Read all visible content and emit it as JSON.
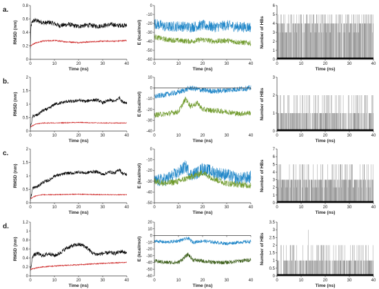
{
  "panel_labels": [
    "a.",
    "b.",
    "c.",
    "d."
  ],
  "colors": {
    "rmsd_black": "#000000",
    "rmsd_red": "#cc1f1f",
    "energy_blue": "#1f86c8",
    "energy_green": "#6f9a2b",
    "energy_green_dark": "#3d5f1b",
    "hbond_gray": "#888888",
    "axis": "#333333"
  },
  "chart_data": [
    {
      "row": 0,
      "col": 0,
      "type": "line",
      "title": "",
      "xlabel": "Time (ns)",
      "ylabel": "RMSD (nm)",
      "xlim": [
        0,
        40
      ],
      "ylim": [
        0,
        0.8
      ],
      "xticks": [
        0,
        10,
        20,
        30,
        40
      ],
      "yticks": [
        0,
        0.2,
        0.4,
        0.6,
        0.8
      ],
      "series": [
        {
          "color": "#000000",
          "x": [
            0,
            0.3,
            1,
            2,
            4,
            6,
            8,
            10,
            12,
            14,
            16,
            18,
            20,
            22,
            24,
            26,
            28,
            30,
            32,
            34,
            36,
            38,
            40
          ],
          "y": [
            0.15,
            0.5,
            0.57,
            0.58,
            0.56,
            0.54,
            0.55,
            0.53,
            0.5,
            0.51,
            0.52,
            0.5,
            0.49,
            0.5,
            0.51,
            0.5,
            0.49,
            0.5,
            0.51,
            0.52,
            0.5,
            0.51,
            0.5
          ],
          "noise": 0.035
        },
        {
          "color": "#cc1f1f",
          "x": [
            0,
            2,
            5,
            10,
            15,
            20,
            25,
            30,
            35,
            40
          ],
          "y": [
            0.2,
            0.24,
            0.27,
            0.28,
            0.26,
            0.25,
            0.26,
            0.27,
            0.27,
            0.28
          ],
          "noise": 0.01
        }
      ]
    },
    {
      "row": 0,
      "col": 1,
      "type": "line",
      "title": "",
      "xlabel": "Time (ns)",
      "ylabel": "E (kcal/mol)",
      "xlim": [
        0,
        40
      ],
      "ylim": [
        -60,
        0
      ],
      "xticks": [
        0,
        10,
        20,
        30,
        40
      ],
      "yticks": [
        0,
        -10,
        -20,
        -30,
        -40,
        -50,
        -60
      ],
      "series": [
        {
          "color": "#1f86c8",
          "x": [
            0,
            5,
            10,
            15,
            20,
            25,
            30,
            35,
            40
          ],
          "y": [
            -20,
            -24,
            -23,
            -24,
            -22,
            -24,
            -22,
            -24,
            -24
          ],
          "noise": 6
        },
        {
          "color": "#6f9a2b",
          "x": [
            0,
            5,
            10,
            15,
            20,
            25,
            30,
            35,
            40
          ],
          "y": [
            -35,
            -38,
            -39,
            -40,
            -38,
            -40,
            -39,
            -41,
            -42
          ],
          "noise": 3
        }
      ]
    },
    {
      "row": 0,
      "col": 2,
      "type": "bar",
      "title": "",
      "xlabel": "Time (ns)",
      "ylabel": "Number of HBs",
      "xlim": [
        0,
        40
      ],
      "ylim": [
        0,
        6
      ],
      "xticks": [
        0,
        10,
        20,
        30,
        40
      ],
      "yticks": [
        0,
        1,
        2,
        3,
        4,
        5,
        6
      ],
      "base_level": 4,
      "max_level": 5
    },
    {
      "row": 1,
      "col": 0,
      "type": "line",
      "title": "",
      "xlabel": "Time (ns)",
      "ylabel": "RMSD (nm)",
      "xlim": [
        0,
        40
      ],
      "ylim": [
        0,
        2
      ],
      "xticks": [
        0,
        10,
        20,
        30,
        40
      ],
      "yticks": [
        0,
        0.5,
        1,
        1.5,
        2
      ],
      "series": [
        {
          "color": "#000000",
          "x": [
            0,
            1,
            3,
            5,
            8,
            10,
            13,
            15,
            18,
            20,
            23,
            25,
            28,
            30,
            33,
            35,
            37,
            38,
            40
          ],
          "y": [
            0.1,
            0.55,
            0.6,
            0.75,
            0.85,
            1.0,
            1.05,
            1.1,
            1.1,
            1.15,
            1.1,
            1.15,
            1.15,
            1.05,
            1.15,
            1.1,
            1.25,
            1.1,
            1.05
          ],
          "noise": 0.06
        },
        {
          "color": "#cc1f1f",
          "x": [
            0,
            2,
            5,
            10,
            20,
            30,
            40
          ],
          "y": [
            0.15,
            0.25,
            0.3,
            0.3,
            0.32,
            0.3,
            0.3
          ],
          "noise": 0.015
        }
      ]
    },
    {
      "row": 1,
      "col": 1,
      "type": "line",
      "title": "",
      "xlabel": "Time (ns)",
      "ylabel": "E (kcal/mol)",
      "xlim": [
        0,
        40
      ],
      "ylim": [
        -40,
        10
      ],
      "xticks": [
        0,
        10,
        20,
        30,
        40
      ],
      "yticks": [
        10,
        0,
        -10,
        -20,
        -30,
        -40
      ],
      "series": [
        {
          "color": "#1f86c8",
          "x": [
            0,
            5,
            10,
            15,
            20,
            25,
            30,
            35,
            40
          ],
          "y": [
            -8,
            -6,
            -4,
            0,
            -2,
            -3,
            -2,
            -1,
            0
          ],
          "noise": 2.5
        },
        {
          "color": "#6f9a2b",
          "x": [
            0,
            5,
            10,
            13,
            15,
            18,
            20,
            25,
            30,
            35,
            40
          ],
          "y": [
            -25,
            -24,
            -22,
            -10,
            -17,
            -14,
            -20,
            -21,
            -22,
            -24,
            -23
          ],
          "noise": 2.5
        }
      ]
    },
    {
      "row": 1,
      "col": 2,
      "type": "bar",
      "title": "",
      "xlabel": "Time (ns)",
      "ylabel": "Number of HBs",
      "xlim": [
        0,
        40
      ],
      "ylim": [
        0,
        3
      ],
      "xticks": [
        0,
        10,
        20,
        30,
        40
      ],
      "yticks": [
        0,
        1,
        2,
        3
      ],
      "base_level": 1,
      "max_level": 2
    },
    {
      "row": 2,
      "col": 0,
      "type": "line",
      "title": "",
      "xlabel": "Time (ns)",
      "ylabel": "RMSD (nm)",
      "xlim": [
        0,
        40
      ],
      "ylim": [
        0,
        2
      ],
      "xticks": [
        0,
        10,
        20,
        30,
        40
      ],
      "yticks": [
        0,
        0.5,
        1,
        1.5,
        2
      ],
      "series": [
        {
          "color": "#000000",
          "x": [
            0,
            1,
            3,
            5,
            8,
            10,
            13,
            15,
            18,
            20,
            23,
            25,
            28,
            30,
            33,
            35,
            37,
            38,
            40
          ],
          "y": [
            0.1,
            0.55,
            0.6,
            0.75,
            0.85,
            1.0,
            1.05,
            1.1,
            1.1,
            1.15,
            1.1,
            1.15,
            1.15,
            1.05,
            1.15,
            1.1,
            1.25,
            1.1,
            1.05
          ],
          "noise": 0.06
        },
        {
          "color": "#cc1f1f",
          "x": [
            0,
            2,
            5,
            10,
            20,
            30,
            40
          ],
          "y": [
            0.15,
            0.25,
            0.3,
            0.3,
            0.32,
            0.3,
            0.3
          ],
          "noise": 0.015
        }
      ]
    },
    {
      "row": 2,
      "col": 1,
      "type": "line",
      "title": "",
      "xlabel": "Time (ns)",
      "ylabel": "E (kcal/mol)",
      "xlim": [
        0,
        40
      ],
      "ylim": [
        -50,
        0
      ],
      "xticks": [
        0,
        10,
        20,
        30,
        40
      ],
      "yticks": [
        0,
        -10,
        -20,
        -30,
        -40,
        -50
      ],
      "series": [
        {
          "color": "#1f86c8",
          "x": [
            0,
            5,
            10,
            13,
            15,
            18,
            20,
            25,
            30,
            35,
            40
          ],
          "y": [
            -30,
            -28,
            -22,
            -16,
            -24,
            -22,
            -18,
            -22,
            -24,
            -28,
            -26
          ],
          "noise": 6
        },
        {
          "color": "#6f9a2b",
          "x": [
            0,
            5,
            10,
            15,
            20,
            25,
            30,
            35,
            40
          ],
          "y": [
            -30,
            -32,
            -30,
            -26,
            -22,
            -28,
            -32,
            -33,
            -34
          ],
          "noise": 3
        }
      ]
    },
    {
      "row": 2,
      "col": 2,
      "type": "bar",
      "title": "",
      "xlabel": "Time (ns)",
      "ylabel": "Number of HBs",
      "xlim": [
        0,
        40
      ],
      "ylim": [
        0,
        7
      ],
      "xticks": [
        0,
        10,
        20,
        30,
        40
      ],
      "yticks": [
        0,
        1,
        2,
        3,
        4,
        5,
        6,
        7
      ],
      "base_level": 3,
      "max_level": 5
    },
    {
      "row": 3,
      "col": 0,
      "type": "line",
      "title": "",
      "xlabel": "Time (ns)",
      "ylabel": "RMSD (nm)",
      "xlim": [
        0,
        40
      ],
      "ylim": [
        0,
        1.2
      ],
      "xticks": [
        0,
        10,
        20,
        30,
        40
      ],
      "yticks": [
        0,
        0.2,
        0.4,
        0.6,
        0.8,
        1,
        1.2
      ],
      "series": [
        {
          "color": "#000000",
          "x": [
            0,
            1,
            3,
            5,
            8,
            10,
            12,
            15,
            18,
            20,
            22,
            24,
            26,
            28,
            30,
            33,
            35,
            38,
            40
          ],
          "y": [
            0.1,
            0.45,
            0.5,
            0.45,
            0.5,
            0.45,
            0.5,
            0.62,
            0.68,
            0.7,
            0.68,
            0.6,
            0.5,
            0.48,
            0.5,
            0.52,
            0.5,
            0.55,
            0.5
          ],
          "noise": 0.045
        },
        {
          "color": "#cc1f1f",
          "x": [
            0,
            5,
            10,
            20,
            30,
            40
          ],
          "y": [
            0.15,
            0.2,
            0.22,
            0.25,
            0.28,
            0.3
          ],
          "noise": 0.012
        }
      ]
    },
    {
      "row": 3,
      "col": 1,
      "type": "line",
      "title": "",
      "xlabel": "Time (ns)",
      "ylabel": "E (kcal/mol)",
      "xlim": [
        0,
        40
      ],
      "ylim": [
        -60,
        20
      ],
      "xticks": [
        0,
        10,
        20,
        30,
        40
      ],
      "yticks": [
        20,
        10,
        0,
        -10,
        -20,
        -30,
        -40,
        -50,
        -60
      ],
      "series": [
        {
          "color": "#1f86c8",
          "x": [
            0,
            5,
            10,
            14,
            16,
            20,
            25,
            30,
            35,
            40
          ],
          "y": [
            -8,
            -10,
            -8,
            -4,
            -10,
            -8,
            -10,
            -12,
            -10,
            -9
          ],
          "noise": 2.5
        },
        {
          "color": "#3d5f1b",
          "x": [
            0,
            5,
            10,
            14,
            16,
            20,
            25,
            30,
            35,
            40
          ],
          "y": [
            -38,
            -40,
            -40,
            -28,
            -36,
            -38,
            -40,
            -40,
            -38,
            -36
          ],
          "noise": 3
        }
      ]
    },
    {
      "row": 3,
      "col": 2,
      "type": "bar",
      "title": "",
      "xlabel": "Time (ns)",
      "ylabel": "Number of HBs",
      "xlim": [
        0,
        40
      ],
      "ylim": [
        0,
        3.5
      ],
      "xticks": [
        0,
        10,
        20,
        30,
        40
      ],
      "yticks": [
        0,
        0.5,
        1,
        1.5,
        2,
        2.5,
        3,
        3.5
      ],
      "base_level": 1,
      "max_level": 2,
      "peak": {
        "x": 13,
        "value": 3
      }
    }
  ]
}
